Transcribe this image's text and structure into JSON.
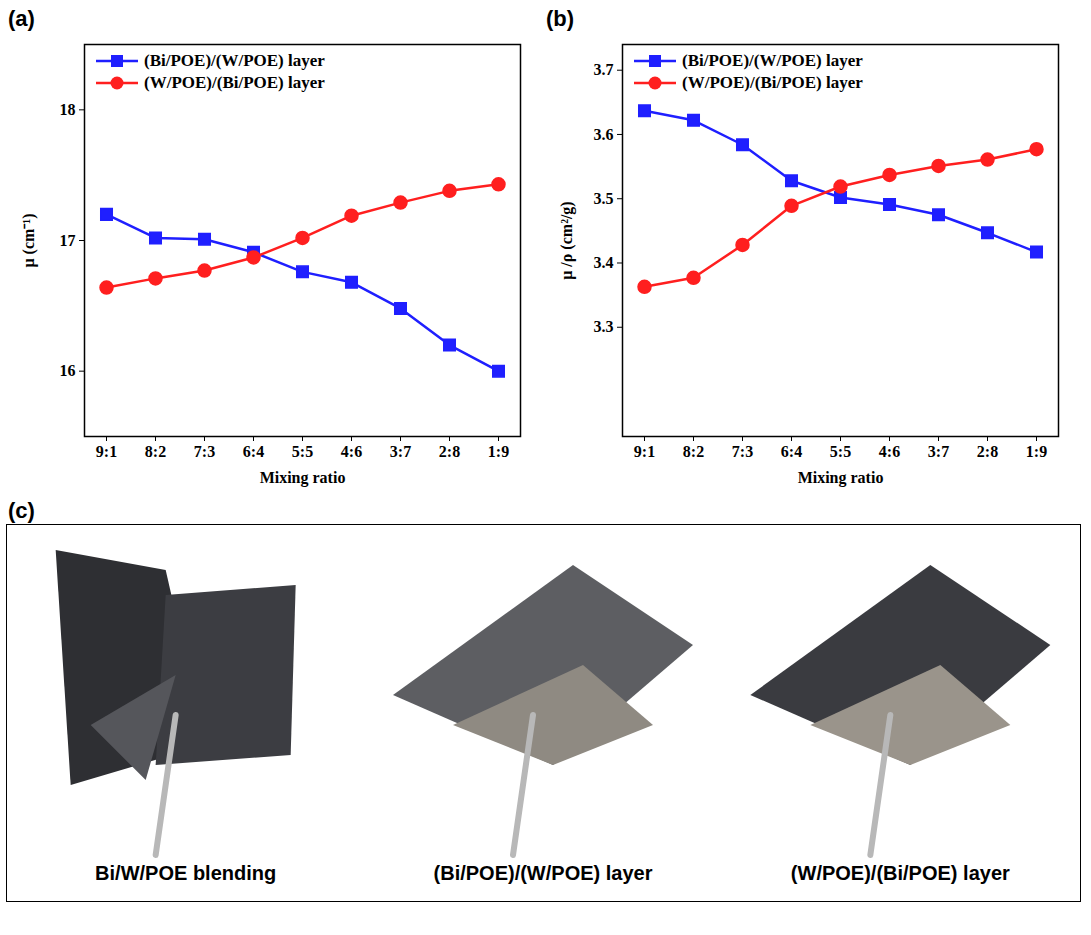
{
  "chart_data": [
    {
      "type": "line",
      "title": "(a)",
      "x_label": "Mixing ratio",
      "y_label": "μ (cm⁻¹)",
      "categories": [
        "9:1",
        "8:2",
        "7:3",
        "6:4",
        "5:5",
        "4:6",
        "3:7",
        "2:8",
        "1:9"
      ],
      "series": [
        {
          "name": "(Bi/POE)/(W/POE) layer",
          "color": "#1f1fff",
          "marker": "square",
          "values": [
            17.2,
            17.02,
            17.01,
            16.91,
            16.76,
            16.68,
            16.48,
            16.2,
            16.0
          ]
        },
        {
          "name": "(W/POE)/(Bi/POE) layer",
          "color": "#ff1f1f",
          "marker": "circle",
          "values": [
            16.64,
            16.71,
            16.77,
            16.87,
            17.02,
            17.19,
            17.29,
            17.38,
            17.43
          ]
        }
      ],
      "ylim": [
        15.5,
        18.5
      ],
      "yticks": [
        16,
        17,
        18
      ],
      "grid": false,
      "legend": "upper left"
    },
    {
      "type": "line",
      "title": "(b)",
      "x_label": "Mixing ratio",
      "y_label": "μ /ρ (cm²/g)",
      "categories": [
        "9:1",
        "8:2",
        "7:3",
        "6:4",
        "5:5",
        "4:6",
        "3:7",
        "2:8",
        "1:9"
      ],
      "series": [
        {
          "name": "(Bi/POE)/(W/POE) layer",
          "color": "#1f1fff",
          "marker": "square",
          "values": [
            3.637,
            3.622,
            3.584,
            3.528,
            3.502,
            3.491,
            3.475,
            3.447,
            3.417
          ]
        },
        {
          "name": "(W/POE)/(Bi/POE) layer",
          "color": "#ff1f1f",
          "marker": "circle",
          "values": [
            3.363,
            3.377,
            3.428,
            3.489,
            3.519,
            3.537,
            3.551,
            3.561,
            3.577
          ]
        }
      ],
      "ylim": [
        3.13,
        3.74
      ],
      "yticks": [
        3.3,
        3.4,
        3.5,
        3.6,
        3.7
      ],
      "grid": false,
      "legend": "upper left"
    }
  ],
  "panel_c": {
    "label": "(c)",
    "captions": [
      "Bi/W/POE blending",
      "(Bi/POE)/(W/POE) layer",
      "(W/POE)/(Bi/POE) layer"
    ]
  }
}
